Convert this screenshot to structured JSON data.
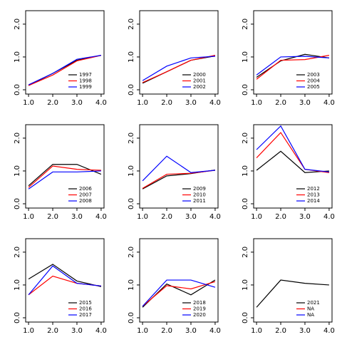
{
  "chart_data": [
    {
      "type": "line",
      "legend": "bottomright",
      "x": [
        {
          "value": 1,
          "label": "1.0"
        },
        {
          "value": 2,
          "label": "2.0"
        },
        {
          "value": 3,
          "label": "3.0"
        },
        {
          "value": 4,
          "label": "4.0"
        }
      ],
      "xlim": [
        0.88,
        4.12
      ],
      "ylim": [
        -0.13,
        2.41
      ],
      "xticks": [
        {
          "value": 1,
          "label": "1.0"
        },
        {
          "value": 2,
          "label": "2.0"
        },
        {
          "value": 3,
          "label": "3.0"
        },
        {
          "value": 4,
          "label": "4.0"
        }
      ],
      "yticks": [
        {
          "value": 0,
          "label": "0.0"
        },
        {
          "value": 1,
          "label": "1.0"
        },
        {
          "value": 2,
          "label": "2.0"
        }
      ],
      "series": [
        {
          "name": "1997",
          "color": "#000000",
          "values": [
            0.13,
            0.5,
            0.9,
            1.05
          ]
        },
        {
          "name": "1998",
          "color": "#ff0000",
          "values": [
            0.13,
            0.45,
            0.88,
            1.05
          ]
        },
        {
          "name": "1999",
          "color": "#0000ff",
          "values": [
            0.15,
            0.5,
            0.93,
            1.05
          ]
        }
      ]
    },
    {
      "type": "line",
      "legend": "bottomright",
      "x": [
        {
          "value": 1,
          "label": "1.0"
        },
        {
          "value": 2,
          "label": "2.0"
        },
        {
          "value": 3,
          "label": "3.0"
        },
        {
          "value": 4,
          "label": "4.0"
        }
      ],
      "xlim": [
        0.88,
        4.12
      ],
      "ylim": [
        -0.13,
        2.41
      ],
      "xticks": [
        {
          "value": 1,
          "label": "1.0"
        },
        {
          "value": 2,
          "label": "2.0"
        },
        {
          "value": 3,
          "label": "3.0"
        },
        {
          "value": 4,
          "label": "4.0"
        }
      ],
      "yticks": [
        {
          "value": 0,
          "label": "0.0"
        },
        {
          "value": 1,
          "label": "1.0"
        },
        {
          "value": 2,
          "label": "2.0"
        }
      ],
      "series": [
        {
          "name": "2000",
          "color": "#000000",
          "values": [
            0.2,
            0.55,
            0.9,
            1.03
          ]
        },
        {
          "name": "2001",
          "color": "#ff0000",
          "values": [
            0.22,
            0.55,
            0.9,
            1.05
          ]
        },
        {
          "name": "2002",
          "color": "#0000ff",
          "values": [
            0.28,
            0.72,
            0.97,
            1.02
          ]
        }
      ]
    },
    {
      "type": "line",
      "legend": "bottomright",
      "x": [
        {
          "value": 1,
          "label": "1.0"
        },
        {
          "value": 2,
          "label": "2.0"
        },
        {
          "value": 3,
          "label": "3.0"
        },
        {
          "value": 4,
          "label": "4.0"
        }
      ],
      "xlim": [
        0.88,
        4.12
      ],
      "ylim": [
        -0.13,
        2.41
      ],
      "xticks": [
        {
          "value": 1,
          "label": "1.0"
        },
        {
          "value": 2,
          "label": "2.0"
        },
        {
          "value": 3,
          "label": "3.0"
        },
        {
          "value": 4,
          "label": "4.0"
        }
      ],
      "yticks": [
        {
          "value": 0,
          "label": "0.0"
        },
        {
          "value": 1,
          "label": "1.0"
        },
        {
          "value": 2,
          "label": "2.0"
        }
      ],
      "series": [
        {
          "name": "2003",
          "color": "#000000",
          "values": [
            0.38,
            0.88,
            1.08,
            0.97
          ]
        },
        {
          "name": "2004",
          "color": "#ff0000",
          "values": [
            0.32,
            0.9,
            0.92,
            1.05
          ]
        },
        {
          "name": "2005",
          "color": "#0000ff",
          "values": [
            0.45,
            1.0,
            1.02,
            0.97
          ]
        }
      ]
    },
    {
      "type": "line",
      "legend": "bottomright",
      "x": [
        {
          "value": 1,
          "label": "1.0"
        },
        {
          "value": 2,
          "label": "2.0"
        },
        {
          "value": 3,
          "label": "3.0"
        },
        {
          "value": 4,
          "label": "4.0"
        }
      ],
      "xlim": [
        0.88,
        4.12
      ],
      "ylim": [
        -0.13,
        2.41
      ],
      "xticks": [
        {
          "value": 1,
          "label": "1.0"
        },
        {
          "value": 2,
          "label": "2.0"
        },
        {
          "value": 3,
          "label": "3.0"
        },
        {
          "value": 4,
          "label": "4.0"
        }
      ],
      "yticks": [
        {
          "value": 0,
          "label": "0.0"
        },
        {
          "value": 1,
          "label": "1.0"
        },
        {
          "value": 2,
          "label": "2.0"
        }
      ],
      "series": [
        {
          "name": "2006",
          "color": "#000000",
          "values": [
            0.55,
            1.2,
            1.2,
            0.9
          ]
        },
        {
          "name": "2007",
          "color": "#ff0000",
          "values": [
            0.5,
            1.15,
            1.05,
            1.02
          ]
        },
        {
          "name": "2008",
          "color": "#0000ff",
          "values": [
            0.45,
            0.97,
            0.97,
            1.0
          ]
        }
      ]
    },
    {
      "type": "line",
      "legend": "bottomright",
      "x": [
        {
          "value": 1,
          "label": "1.0"
        },
        {
          "value": 2,
          "label": "2.0"
        },
        {
          "value": 3,
          "label": "3.0"
        },
        {
          "value": 4,
          "label": "4.0"
        }
      ],
      "xlim": [
        0.88,
        4.12
      ],
      "ylim": [
        -0.13,
        2.41
      ],
      "xticks": [
        {
          "value": 1,
          "label": "1.0"
        },
        {
          "value": 2,
          "label": "2.0"
        },
        {
          "value": 3,
          "label": "3.0"
        },
        {
          "value": 4,
          "label": "4.0"
        }
      ],
      "yticks": [
        {
          "value": 0,
          "label": "0.0"
        },
        {
          "value": 1,
          "label": "1.0"
        },
        {
          "value": 2,
          "label": "2.0"
        }
      ],
      "series": [
        {
          "name": "2009",
          "color": "#000000",
          "values": [
            0.45,
            0.85,
            0.92,
            1.03
          ]
        },
        {
          "name": "2010",
          "color": "#ff0000",
          "values": [
            0.47,
            0.9,
            0.93,
            1.02
          ]
        },
        {
          "name": "2011",
          "color": "#0000ff",
          "values": [
            0.7,
            1.45,
            0.95,
            1.02
          ]
        }
      ]
    },
    {
      "type": "line",
      "legend": "bottomright",
      "x": [
        {
          "value": 1,
          "label": "1.0"
        },
        {
          "value": 2,
          "label": "2.0"
        },
        {
          "value": 3,
          "label": "3.0"
        },
        {
          "value": 4,
          "label": "4.0"
        }
      ],
      "xlim": [
        0.88,
        4.12
      ],
      "ylim": [
        -0.13,
        2.41
      ],
      "xticks": [
        {
          "value": 1,
          "label": "1.0"
        },
        {
          "value": 2,
          "label": "2.0"
        },
        {
          "value": 3,
          "label": "3.0"
        },
        {
          "value": 4,
          "label": "4.0"
        }
      ],
      "yticks": [
        {
          "value": 0,
          "label": "0.0"
        },
        {
          "value": 1,
          "label": "1.0"
        },
        {
          "value": 2,
          "label": "2.0"
        }
      ],
      "series": [
        {
          "name": "2012",
          "color": "#000000",
          "values": [
            1.02,
            1.6,
            0.95,
            1.0
          ]
        },
        {
          "name": "2013",
          "color": "#ff0000",
          "values": [
            1.4,
            2.17,
            1.05,
            0.95
          ]
        },
        {
          "name": "2014",
          "color": "#0000ff",
          "values": [
            1.65,
            2.37,
            1.05,
            0.97
          ]
        }
      ]
    },
    {
      "type": "line",
      "legend": "bottomright",
      "x": [
        {
          "value": 1,
          "label": "1.0"
        },
        {
          "value": 2,
          "label": "2.0"
        },
        {
          "value": 3,
          "label": "3.0"
        },
        {
          "value": 4,
          "label": "4.0"
        }
      ],
      "xlim": [
        0.88,
        4.12
      ],
      "ylim": [
        -0.13,
        2.41
      ],
      "xticks": [
        {
          "value": 1,
          "label": "1.0"
        },
        {
          "value": 2,
          "label": "2.0"
        },
        {
          "value": 3,
          "label": "3.0"
        },
        {
          "value": 4,
          "label": "4.0"
        }
      ],
      "yticks": [
        {
          "value": 0,
          "label": "0.0"
        },
        {
          "value": 1,
          "label": "1.0"
        },
        {
          "value": 2,
          "label": "2.0"
        }
      ],
      "series": [
        {
          "name": "2015",
          "color": "#000000",
          "values": [
            1.18,
            1.63,
            1.12,
            0.95
          ]
        },
        {
          "name": "2016",
          "color": "#ff0000",
          "values": [
            0.7,
            1.27,
            1.05,
            0.97
          ]
        },
        {
          "name": "2017",
          "color": "#0000ff",
          "values": [
            0.7,
            1.58,
            1.05,
            0.97
          ]
        }
      ]
    },
    {
      "type": "line",
      "legend": "bottomright",
      "x": [
        {
          "value": 1,
          "label": "1.0"
        },
        {
          "value": 2,
          "label": "2.0"
        },
        {
          "value": 3,
          "label": "3.0"
        },
        {
          "value": 4,
          "label": "4.0"
        }
      ],
      "xlim": [
        0.88,
        4.12
      ],
      "ylim": [
        -0.13,
        2.41
      ],
      "xticks": [
        {
          "value": 1,
          "label": "1.0"
        },
        {
          "value": 2,
          "label": "2.0"
        },
        {
          "value": 3,
          "label": "3.0"
        },
        {
          "value": 4,
          "label": "4.0"
        }
      ],
      "yticks": [
        {
          "value": 0,
          "label": "0.0"
        },
        {
          "value": 1,
          "label": "1.0"
        },
        {
          "value": 2,
          "label": "2.0"
        }
      ],
      "series": [
        {
          "name": "2018",
          "color": "#000000",
          "values": [
            0.32,
            1.03,
            0.7,
            1.15
          ]
        },
        {
          "name": "2019",
          "color": "#ff0000",
          "values": [
            0.35,
            0.98,
            0.88,
            1.1
          ]
        },
        {
          "name": "2020",
          "color": "#0000ff",
          "values": [
            0.35,
            1.15,
            1.15,
            0.93
          ]
        }
      ]
    },
    {
      "type": "line",
      "legend": "bottomright",
      "x": [
        {
          "value": 1,
          "label": "1.0"
        },
        {
          "value": 2,
          "label": "2.0"
        },
        {
          "value": 3,
          "label": "3.0"
        },
        {
          "value": 4,
          "label": "4.0"
        }
      ],
      "xlim": [
        0.88,
        4.12
      ],
      "ylim": [
        -0.13,
        2.41
      ],
      "xticks": [
        {
          "value": 1,
          "label": "1.0"
        },
        {
          "value": 2,
          "label": "2.0"
        },
        {
          "value": 3,
          "label": "3.0"
        },
        {
          "value": 4,
          "label": "4.0"
        }
      ],
      "yticks": [
        {
          "value": 0,
          "label": "0.0"
        },
        {
          "value": 1,
          "label": "1.0"
        },
        {
          "value": 2,
          "label": "2.0"
        }
      ],
      "series": [
        {
          "name": "2021",
          "color": "#000000",
          "values": [
            0.32,
            1.15,
            1.05,
            1.0
          ]
        },
        {
          "name": "NA",
          "color": "#ff0000",
          "values": [
            null,
            null,
            null,
            null
          ]
        },
        {
          "name": "NA",
          "color": "#0000ff",
          "values": [
            null,
            null,
            null,
            null
          ]
        }
      ]
    }
  ]
}
